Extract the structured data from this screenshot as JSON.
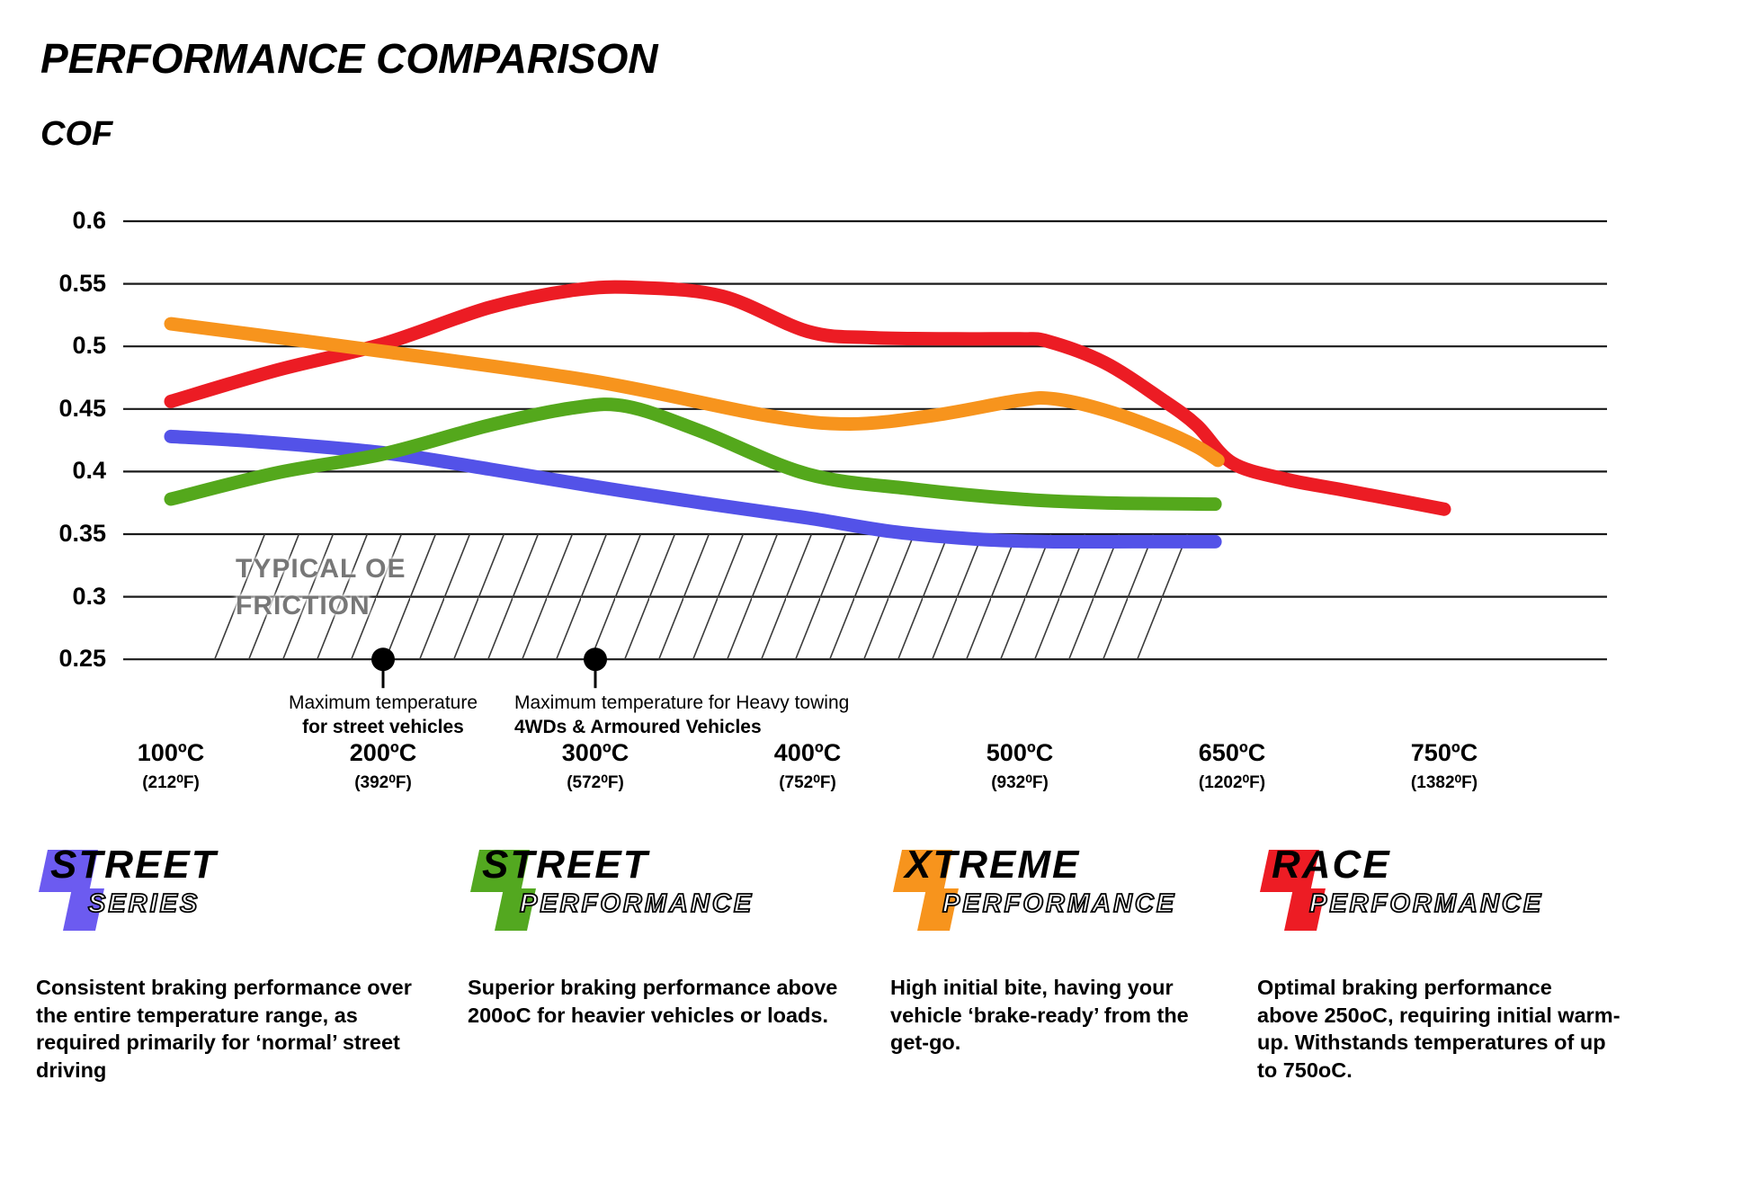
{
  "chart_data": {
    "type": "line",
    "title": "PERFORMANCE COMPARISON",
    "ylabel": "COF",
    "grid": true,
    "legend_position": "bottom",
    "ylim": [
      0.25,
      0.6
    ],
    "y_ticks": [
      0.6,
      0.55,
      0.5,
      0.45,
      0.4,
      0.35,
      0.3,
      0.25
    ],
    "y_tick_labels": [
      "0.6",
      "0.55",
      "0.5",
      "0.45",
      "0.4",
      "0.35",
      "0.3",
      "0.25"
    ],
    "x_temps": [
      100,
      200,
      300,
      400,
      500,
      650,
      750
    ],
    "x_tick_labels": [
      {
        "celsius": "100ºC",
        "fahrenheit": "(212⁰F)"
      },
      {
        "celsius": "200ºC",
        "fahrenheit": "(392⁰F)"
      },
      {
        "celsius": "300ºC",
        "fahrenheit": "(572⁰F)"
      },
      {
        "celsius": "400ºC",
        "fahrenheit": "(752⁰F)"
      },
      {
        "celsius": "500ºC",
        "fahrenheit": "(932⁰F)"
      },
      {
        "celsius": "650ºC",
        "fahrenheit": "(1202⁰F)"
      },
      {
        "celsius": "750ºC",
        "fahrenheit": "(1382⁰F)"
      }
    ],
    "series": [
      {
        "name": "Street Series",
        "color": "#5352e8",
        "points": [
          [
            100,
            0.428
          ],
          [
            140,
            0.424
          ],
          [
            200,
            0.415
          ],
          [
            250,
            0.402
          ],
          [
            300,
            0.388
          ],
          [
            350,
            0.375
          ],
          [
            400,
            0.363
          ],
          [
            440,
            0.352
          ],
          [
            480,
            0.346
          ],
          [
            520,
            0.344
          ],
          [
            580,
            0.344
          ],
          [
            638,
            0.344
          ]
        ]
      },
      {
        "name": "Street Performance",
        "color": "#54a81c",
        "points": [
          [
            100,
            0.378
          ],
          [
            150,
            0.399
          ],
          [
            200,
            0.414
          ],
          [
            250,
            0.437
          ],
          [
            290,
            0.451
          ],
          [
            315,
            0.452
          ],
          [
            350,
            0.432
          ],
          [
            400,
            0.398
          ],
          [
            450,
            0.386
          ],
          [
            500,
            0.378
          ],
          [
            560,
            0.375
          ],
          [
            638,
            0.374
          ]
        ]
      },
      {
        "name": "Xtreme Performance",
        "color": "#f7941d",
        "points": [
          [
            100,
            0.518
          ],
          [
            200,
            0.496
          ],
          [
            300,
            0.472
          ],
          [
            380,
            0.445
          ],
          [
            420,
            0.438
          ],
          [
            460,
            0.445
          ],
          [
            500,
            0.457
          ],
          [
            525,
            0.458
          ],
          [
            560,
            0.449
          ],
          [
            600,
            0.433
          ],
          [
            625,
            0.42
          ],
          [
            640,
            0.409
          ]
        ]
      },
      {
        "name": "Race Performance",
        "color": "#ec1c24",
        "points": [
          [
            100,
            0.456
          ],
          [
            150,
            0.481
          ],
          [
            200,
            0.502
          ],
          [
            250,
            0.531
          ],
          [
            290,
            0.545
          ],
          [
            320,
            0.547
          ],
          [
            360,
            0.54
          ],
          [
            400,
            0.512
          ],
          [
            430,
            0.507
          ],
          [
            470,
            0.506
          ],
          [
            500,
            0.506
          ],
          [
            520,
            0.504
          ],
          [
            560,
            0.487
          ],
          [
            600,
            0.458
          ],
          [
            625,
            0.437
          ],
          [
            650,
            0.407
          ],
          [
            675,
            0.394
          ],
          [
            700,
            0.386
          ],
          [
            725,
            0.378
          ],
          [
            750,
            0.37
          ]
        ]
      }
    ],
    "oe_zone": {
      "label": [
        "TYPICAL OE",
        "FRICTION"
      ],
      "cof_top": 0.35,
      "cof_bottom": 0.25
    },
    "annotations": [
      {
        "temp": 200,
        "cof": 0.25,
        "align": "center",
        "line1": "Maximum temperature",
        "line2": "for street vehicles"
      },
      {
        "temp": 300,
        "cof": 0.25,
        "align": "left",
        "line1": "Maximum temperature for Heavy towing",
        "line2": "4WDs & Armoured Vehicles"
      }
    ]
  },
  "legend": [
    {
      "brand": "STREET",
      "sub": "SERIES",
      "color": "#6c5bf0",
      "description_lines": [
        "Consistent braking performance over",
        "the entire temperature range, as",
        "required primarily for ‘normal’ street",
        "driving"
      ]
    },
    {
      "brand": "STREET",
      "sub": "PERFORMANCE",
      "color": "#53a820",
      "description_lines": [
        "Superior braking performance above",
        "200oC for heavier vehicles or loads."
      ]
    },
    {
      "brand": "XTREME",
      "sub": "PERFORMANCE",
      "color": "#f7941d",
      "description_lines": [
        "High initial bite, having your",
        "vehicle ‘brake-ready’ from the",
        "get-go."
      ]
    },
    {
      "brand": "RACE",
      "sub": "PERFORMANCE",
      "color": "#ed1c24",
      "description_lines": [
        "Optimal braking performance",
        "above 250oC, requiring initial warm-",
        "up. Withstands temperatures of up",
        "to 750oC."
      ]
    }
  ]
}
